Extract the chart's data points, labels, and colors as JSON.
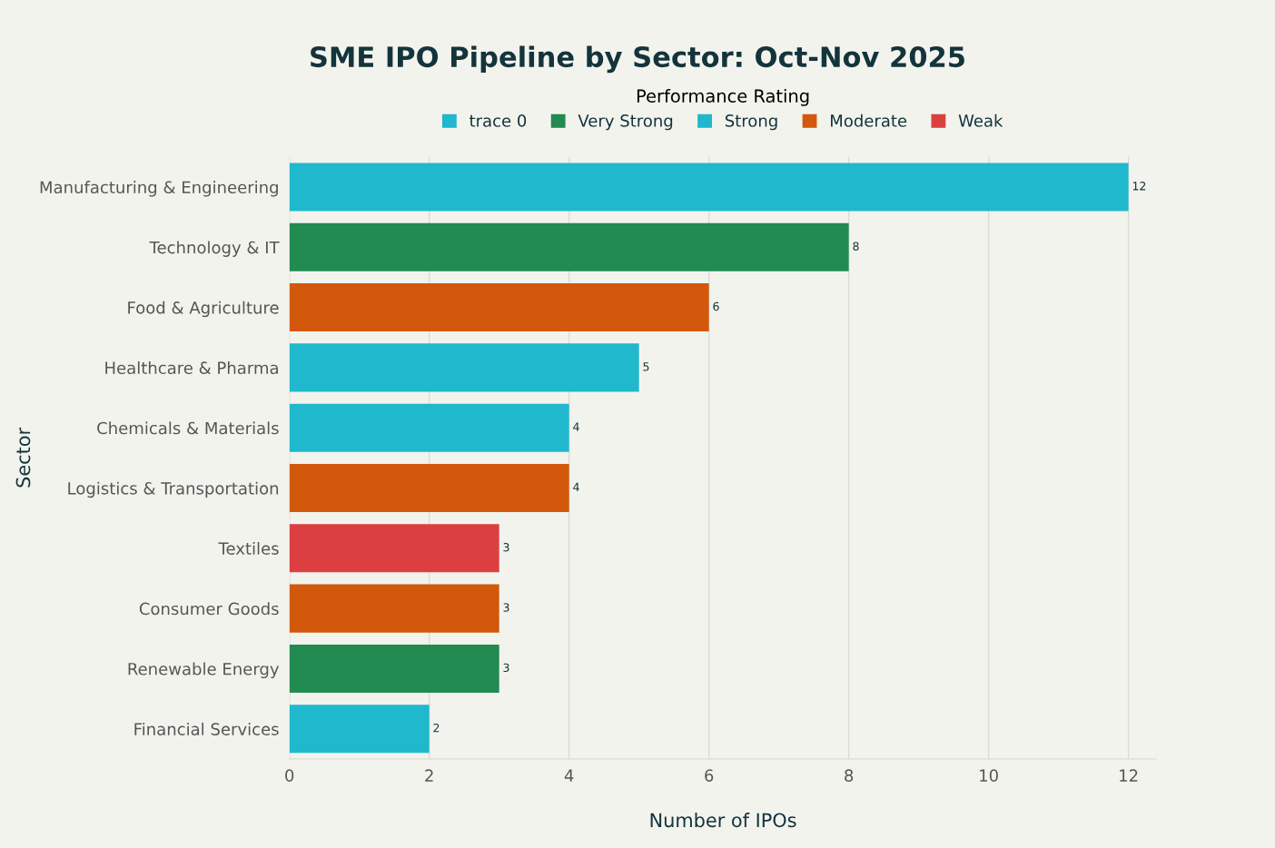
{
  "chart_data": {
    "type": "bar",
    "orientation": "horizontal",
    "title": "SME IPO Pipeline by Sector: Oct-Nov 2025",
    "xlabel": "Number of IPOs",
    "ylabel": "Sector",
    "legend_title": "Performance Rating",
    "categories": [
      "Manufacturing & Engineering",
      "Technology & IT",
      "Food & Agriculture",
      "Healthcare & Pharma",
      "Chemicals & Materials",
      "Logistics & Transportation",
      "Textiles",
      "Consumer Goods",
      "Renewable Energy",
      "Financial Services"
    ],
    "series": [
      {
        "name": "trace 0",
        "color": "#1fb8cd",
        "values": [
          12,
          null,
          null,
          null,
          null,
          null,
          null,
          null,
          null,
          null
        ]
      },
      {
        "name": "Very Strong",
        "color": "#218b52",
        "values": [
          null,
          8,
          null,
          null,
          null,
          null,
          null,
          null,
          3,
          null
        ]
      },
      {
        "name": "Strong",
        "color": "#1fb8cd",
        "values": [
          null,
          null,
          null,
          5,
          4,
          null,
          null,
          null,
          null,
          2
        ]
      },
      {
        "name": "Moderate",
        "color": "#d2580c",
        "values": [
          null,
          null,
          6,
          null,
          null,
          4,
          null,
          3,
          null,
          null
        ]
      },
      {
        "name": "Weak",
        "color": "#db3f3f",
        "values": [
          null,
          null,
          null,
          null,
          null,
          null,
          3,
          null,
          null,
          null
        ]
      }
    ],
    "xlim": [
      0,
      12.4
    ],
    "xticks": [
      0,
      2,
      4,
      6,
      8,
      10,
      12
    ],
    "grid": "x",
    "legend": "top",
    "data_labels": true
  }
}
